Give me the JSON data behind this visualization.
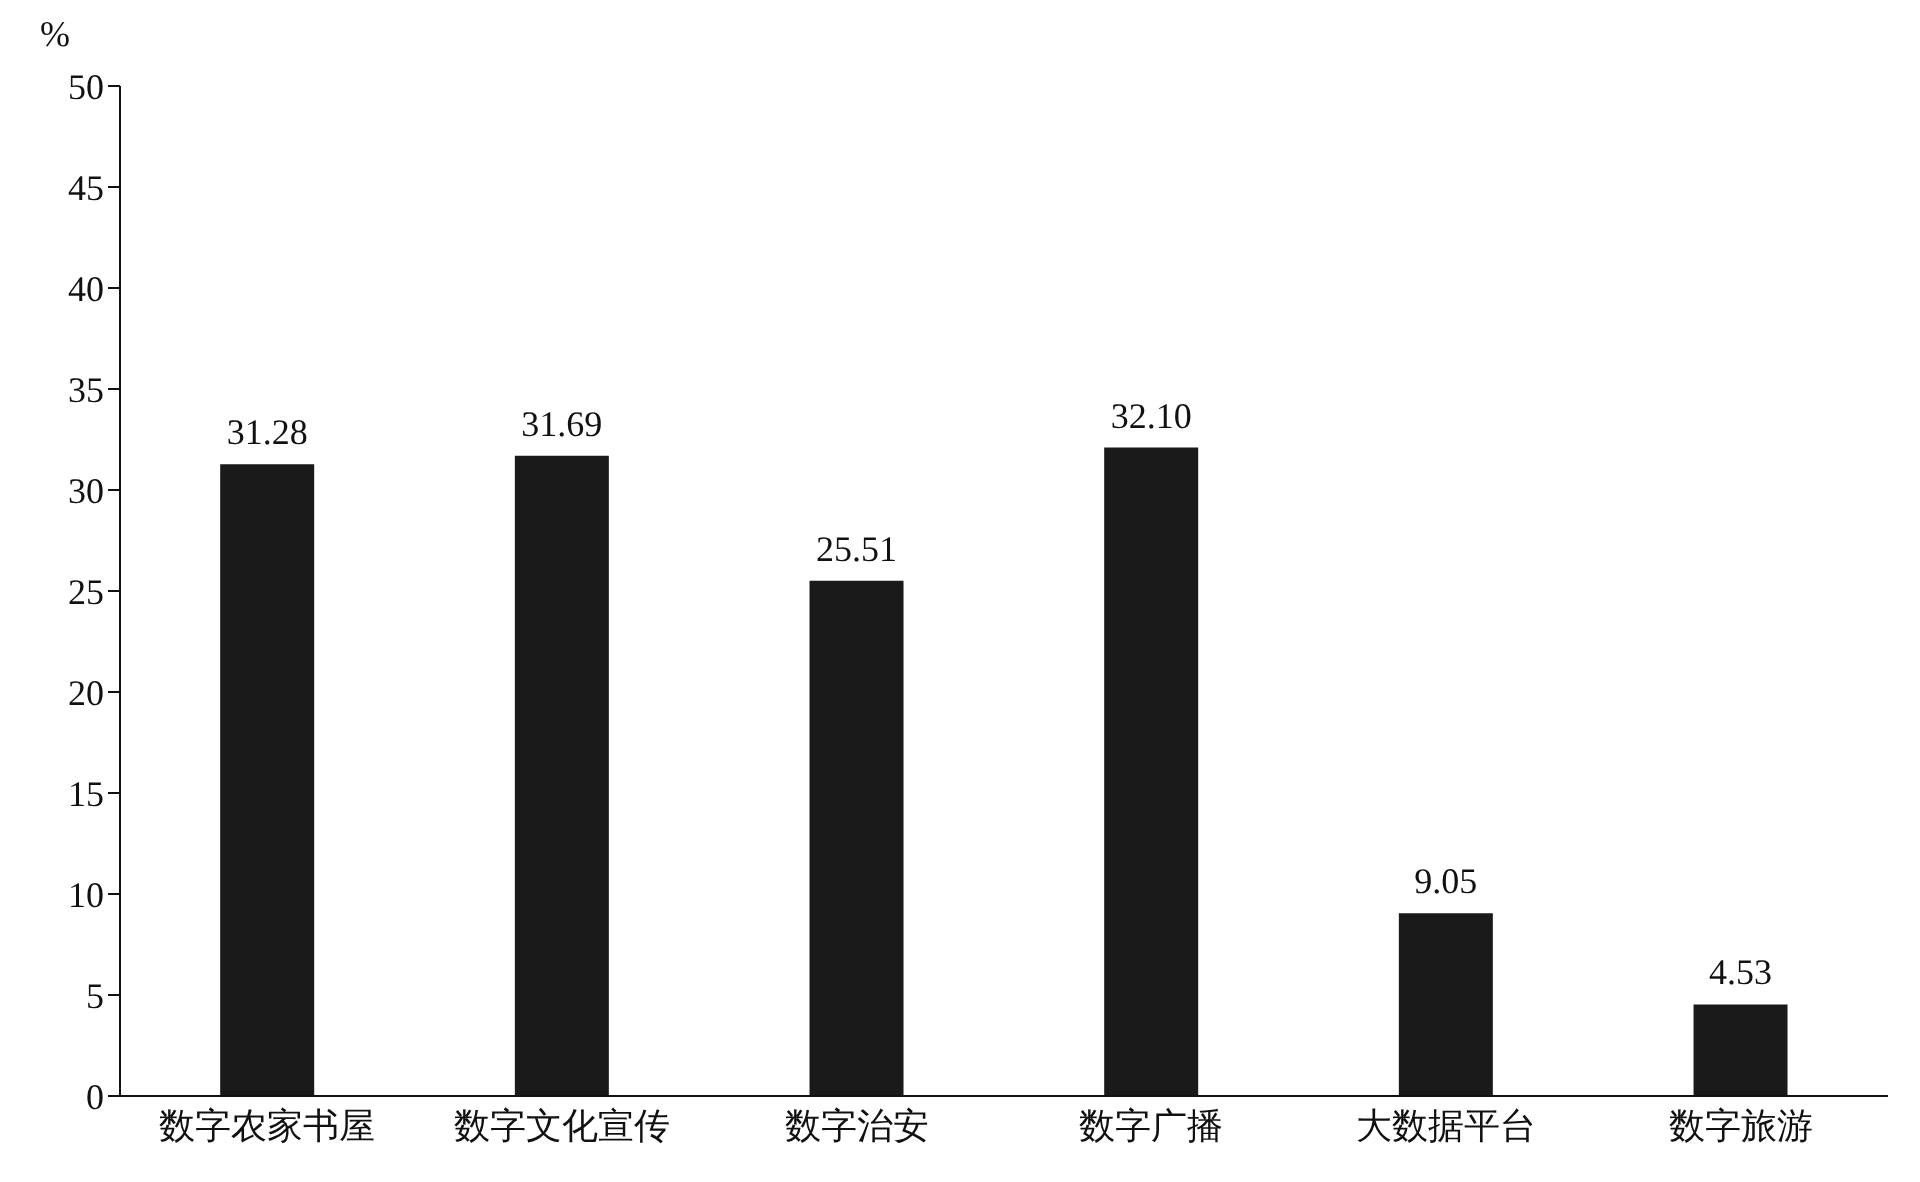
{
  "chart_data": {
    "type": "bar",
    "ylabel": "%",
    "categories": [
      "数字农家书屋",
      "数字文化宣传",
      "数字治安",
      "数字广播",
      "大数据平台",
      "数字旅游"
    ],
    "values": [
      31.28,
      31.69,
      25.51,
      32.1,
      9.05,
      4.53
    ],
    "value_labels": [
      "31.28",
      "31.69",
      "25.51",
      "32.10",
      "9.05",
      "4.53"
    ],
    "color": "#1a1a1a",
    "ylim": [
      0,
      50
    ],
    "yticks": [
      0,
      5,
      10,
      15,
      20,
      25,
      30,
      35,
      40,
      45,
      50
    ],
    "grid": false
  }
}
